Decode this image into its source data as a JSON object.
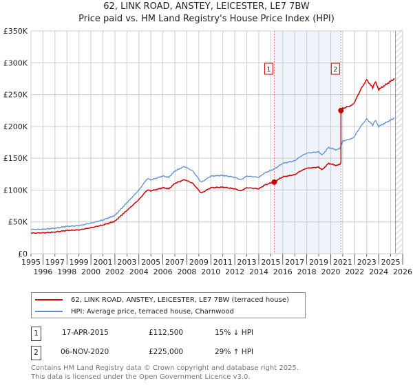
{
  "title_line1": "62, LINK ROAD, ANSTEY, LEICESTER, LE7 7BW",
  "title_line2": "Price paid vs. HM Land Registry's House Price Index (HPI)",
  "chart_data": {
    "type": "line",
    "title": "Price paid vs. HM Land Registry's House Price Index (HPI)",
    "xlim": [
      1995,
      2026
    ],
    "ylim": [
      0,
      350000
    ],
    "x_ticks": [
      "1995",
      "1996",
      "1997",
      "1998",
      "1999",
      "2000",
      "2001",
      "2002",
      "2003",
      "2004",
      "2005",
      "2006",
      "2007",
      "2008",
      "2009",
      "2010",
      "2011",
      "2012",
      "2013",
      "2014",
      "2015",
      "2016",
      "2017",
      "2018",
      "2019",
      "2020",
      "2021",
      "2022",
      "2023",
      "2024",
      "2025",
      "2026"
    ],
    "y_ticks": [
      {
        "v": 0,
        "label": "£0"
      },
      {
        "v": 50000,
        "label": "£50K"
      },
      {
        "v": 100000,
        "label": "£100K"
      },
      {
        "v": 150000,
        "label": "£150K"
      },
      {
        "v": 200000,
        "label": "£200K"
      },
      {
        "v": 250000,
        "label": "£250K"
      },
      {
        "v": 300000,
        "label": "£300K"
      },
      {
        "v": 350000,
        "label": "£350K"
      }
    ],
    "colors": {
      "property": "#cc0000",
      "hpi": "#5b8fd4",
      "shade": "#eef3fc"
    },
    "hpi": {
      "x": [
        1995,
        1996,
        1997,
        1998,
        1999,
        2000,
        2001,
        2002,
        2003,
        2004,
        2004.7,
        2005,
        2006,
        2006.5,
        2007,
        2007.8,
        2008.5,
        2009.2,
        2010,
        2011,
        2012,
        2012.5,
        2013,
        2014,
        2014.5,
        2015.3,
        2016,
        2017,
        2017.5,
        2018,
        2019,
        2019.3,
        2019.8,
        2020.5,
        2020.8,
        2021,
        2021.8,
        2022,
        2022.5,
        2023,
        2023.5,
        2023.7,
        2024,
        2024.5,
        2025,
        2025.3
      ],
      "y": [
        38000,
        38500,
        40000,
        43000,
        44000,
        48000,
        53000,
        60000,
        80000,
        100000,
        118000,
        116000,
        122000,
        120000,
        130000,
        137000,
        130000,
        112000,
        122000,
        123000,
        120000,
        116000,
        122000,
        120000,
        127000,
        133000,
        142000,
        146000,
        153000,
        158000,
        160000,
        155000,
        167000,
        163000,
        166000,
        177000,
        181000,
        185000,
        200000,
        212000,
        202000,
        210000,
        200000,
        205000,
        210000,
        213000
      ]
    },
    "property_factor_before": 0.85,
    "property_factor_after": 1.29,
    "sales": [
      {
        "id": "1",
        "x": 2015.29,
        "y": 112500
      },
      {
        "id": "2",
        "x": 2020.85,
        "y": 225000
      }
    ],
    "data_end": 2025.4
  },
  "legend": [
    {
      "label": "62, LINK ROAD, ANSTEY, LEICESTER, LE7 7BW (terraced house)"
    },
    {
      "label": "HPI: Average price, terraced house, Charnwood"
    }
  ],
  "table": [
    {
      "num": "1",
      "date": "17-APR-2015",
      "price": "£112,500",
      "hpi": "15% ↓ HPI"
    },
    {
      "num": "2",
      "date": "06-NOV-2020",
      "price": "£225,000",
      "hpi": "29% ↑ HPI"
    }
  ],
  "footer_line1": "Contains HM Land Registry data © Crown copyright and database right 2025.",
  "footer_line2": "This data is licensed under the Open Government Licence v3.0."
}
